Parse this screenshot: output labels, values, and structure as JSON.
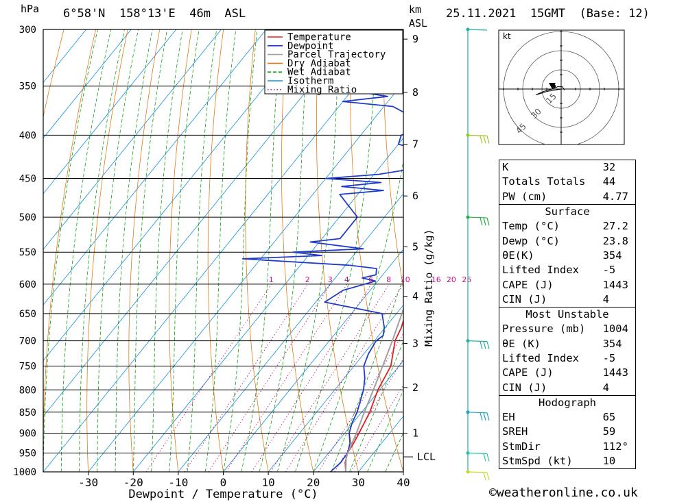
{
  "header": {
    "hpa_unit": "hPa",
    "location": "6°58'N  158°13'E  46m  ASL",
    "km_unit": "km",
    "asl_unit": "ASL",
    "datetime": "25.11.2021  15GMT  (Base: 12)"
  },
  "credit": "©weatheronline.co.uk",
  "chart_data": {
    "type": "line",
    "xlabel": "Dewpoint / Temperature (°C)",
    "ylabel": "hPa",
    "mixing_ratio_axis_label": "Mixing Ratio (g/kg)",
    "x_ticks": [
      -30,
      -20,
      -10,
      0,
      10,
      20,
      30,
      40
    ],
    "xlim": [
      -40,
      40
    ],
    "ylim": [
      1000,
      300
    ],
    "y_scale": "log",
    "pressure_levels": [
      300,
      350,
      400,
      450,
      500,
      550,
      600,
      650,
      700,
      750,
      800,
      850,
      900,
      950,
      1000
    ],
    "km_ticks": [
      {
        "km": 1,
        "p": 900
      },
      {
        "km": 2,
        "p": 795
      },
      {
        "km": 3,
        "p": 705
      },
      {
        "km": 4,
        "p": 620
      },
      {
        "km": 5,
        "p": 542
      },
      {
        "km": 6,
        "p": 472
      },
      {
        "km": 7,
        "p": 410
      },
      {
        "km": 8,
        "p": 356
      },
      {
        "km": 9,
        "p": 308
      }
    ],
    "lcl": {
      "label": "LCL",
      "p": 960
    },
    "mixing_ratio_labels": [
      "1",
      "2",
      "3",
      "4",
      "6",
      "8",
      "10",
      "16",
      "20",
      "25"
    ],
    "legend": [
      "Temperature",
      "Dewpoint",
      "Parcel Trajectory",
      "Dry Adiabat",
      "Wet Adiabat",
      "Isotherm",
      "Mixing Ratio"
    ],
    "colors": {
      "temperature": "#e02020",
      "dewpoint": "#1e3cc8",
      "parcel": "#a0a0a0",
      "dry_adiabat": "#e07a10",
      "wet_adiabat": "#10a010",
      "isotherm": "#1090e0",
      "mixing_ratio": "#c0108a",
      "wind_axis": "#14b0a0"
    },
    "series": [
      {
        "name": "Temperature",
        "points": [
          [
            1000,
            27.2
          ],
          [
            975,
            25.4
          ],
          [
            950,
            24.2
          ],
          [
            925,
            23.8
          ],
          [
            900,
            23.2
          ],
          [
            850,
            21.8
          ],
          [
            800,
            19.6
          ],
          [
            750,
            18.2
          ],
          [
            700,
            14.6
          ],
          [
            675,
            13.6
          ],
          [
            650,
            12.0
          ],
          [
            625,
            10.8
          ],
          [
            600,
            9.2
          ],
          [
            575,
            7.6
          ],
          [
            560,
            6.6
          ],
          [
            550,
            6.8
          ],
          [
            530,
            6.8
          ],
          [
            500,
            4.0
          ],
          [
            480,
            1.4
          ],
          [
            460,
            0.8
          ],
          [
            440,
            -1.2
          ],
          [
            420,
            -3.2
          ],
          [
            400,
            -5.6
          ],
          [
            380,
            -9.0
          ],
          [
            370,
            -11.0
          ],
          [
            360,
            -11.6
          ]
        ]
      },
      {
        "name": "Dewpoint",
        "points": [
          [
            1000,
            23.8
          ],
          [
            975,
            24.4
          ],
          [
            950,
            24.2
          ],
          [
            925,
            23.0
          ],
          [
            900,
            21.0
          ],
          [
            875,
            19.8
          ],
          [
            850,
            19.0
          ],
          [
            800,
            16.4
          ],
          [
            775,
            14.6
          ],
          [
            750,
            12.2
          ],
          [
            725,
            11.0
          ],
          [
            700,
            10.4
          ],
          [
            690,
            11.0
          ],
          [
            675,
            9.8
          ],
          [
            650,
            6.8
          ],
          [
            630,
            -8.0
          ],
          [
            610,
            -6.0
          ],
          [
            595,
            -0.5
          ],
          [
            590,
            -4.0
          ],
          [
            585,
            -1.5
          ],
          [
            575,
            -2.5
          ],
          [
            570,
            -9.0
          ],
          [
            560,
            -34.0
          ],
          [
            555,
            -17.0
          ],
          [
            550,
            -24.0
          ],
          [
            545,
            -9.0
          ],
          [
            535,
            -22.0
          ],
          [
            530,
            -16.0
          ],
          [
            500,
            -16.0
          ],
          [
            470,
            -24.0
          ],
          [
            465,
            -15.0
          ],
          [
            460,
            -25.0
          ],
          [
            455,
            -17.0
          ],
          [
            450,
            -30.0
          ],
          [
            445,
            -19.0
          ],
          [
            435,
            -9.0
          ],
          [
            420,
            -10.5
          ],
          [
            410,
            -20.0
          ],
          [
            400,
            -21.0
          ],
          [
            390,
            -16.5
          ],
          [
            370,
            -28.0
          ],
          [
            365,
            -40.0
          ],
          [
            360,
            -31.0
          ],
          [
            350,
            -47.0
          ],
          [
            340,
            -26.0
          ],
          [
            330,
            -39.0
          ],
          [
            325,
            -31.0
          ],
          [
            310,
            -44.0
          ],
          [
            300,
            -64.0
          ]
        ]
      },
      {
        "name": "Parcel Trajectory",
        "points": [
          [
            1000,
            27.2
          ],
          [
            960,
            24.6
          ],
          [
            900,
            22.6
          ],
          [
            850,
            20.6
          ],
          [
            800,
            18.6
          ],
          [
            750,
            16.4
          ],
          [
            700,
            14.0
          ],
          [
            650,
            11.2
          ],
          [
            600,
            8.2
          ],
          [
            550,
            4.6
          ],
          [
            500,
            0.6
          ],
          [
            450,
            -4.2
          ],
          [
            400,
            -10.0
          ],
          [
            380,
            -12.8
          ],
          [
            360,
            -16.0
          ]
        ]
      }
    ],
    "winds": [
      {
        "p": 1000,
        "speed_kt": 10
      },
      {
        "p": 950,
        "speed_kt": 10
      },
      {
        "p": 850,
        "speed_kt": 15
      },
      {
        "p": 700,
        "speed_kt": 15
      },
      {
        "p": 500,
        "speed_kt": 15
      },
      {
        "p": 400,
        "speed_kt": 15
      },
      {
        "p": 300,
        "speed_kt": 5
      }
    ],
    "hodograph": {
      "unit_label": "kt",
      "ring_labels": [
        "15",
        "30",
        "45"
      ],
      "trace_u_v": [
        [
          0,
          0
        ],
        [
          -6,
          -1
        ],
        [
          -12,
          -2
        ],
        [
          -18,
          -4
        ],
        [
          -22,
          -5
        ],
        [
          -15,
          -2
        ],
        [
          -8,
          0
        ],
        [
          -3,
          2
        ],
        [
          1,
          2
        ],
        [
          3,
          -1
        ]
      ],
      "storm_motion": {
        "dir_deg": 112,
        "speed_kt": 10
      }
    }
  },
  "indices": {
    "top": [
      {
        "label": "K",
        "value": "32"
      },
      {
        "label": "Totals Totals",
        "value": "44"
      },
      {
        "label": "PW (cm)",
        "value": "4.77"
      }
    ],
    "surface": {
      "title": "Surface",
      "rows": [
        {
          "label": "Temp (°C)",
          "value": "27.2"
        },
        {
          "label": "Dewp (°C)",
          "value": "23.8"
        },
        {
          "label": "θE(K)",
          "value": "354"
        },
        {
          "label": "Lifted Index",
          "value": "-5"
        },
        {
          "label": "CAPE (J)",
          "value": "1443"
        },
        {
          "label": "CIN (J)",
          "value": "4"
        }
      ]
    },
    "most_unstable": {
      "title": "Most Unstable",
      "rows": [
        {
          "label": "Pressure (mb)",
          "value": "1004"
        },
        {
          "label": "θE (K)",
          "value": "354"
        },
        {
          "label": "Lifted Index",
          "value": "-5"
        },
        {
          "label": "CAPE (J)",
          "value": "1443"
        },
        {
          "label": "CIN (J)",
          "value": "4"
        }
      ]
    },
    "hodograph": {
      "title": "Hodograph",
      "rows": [
        {
          "label": "EH",
          "value": "65"
        },
        {
          "label": "SREH",
          "value": "59"
        },
        {
          "label": "StmDir",
          "value": "112°"
        },
        {
          "label": "StmSpd (kt)",
          "value": "10"
        }
      ]
    }
  }
}
